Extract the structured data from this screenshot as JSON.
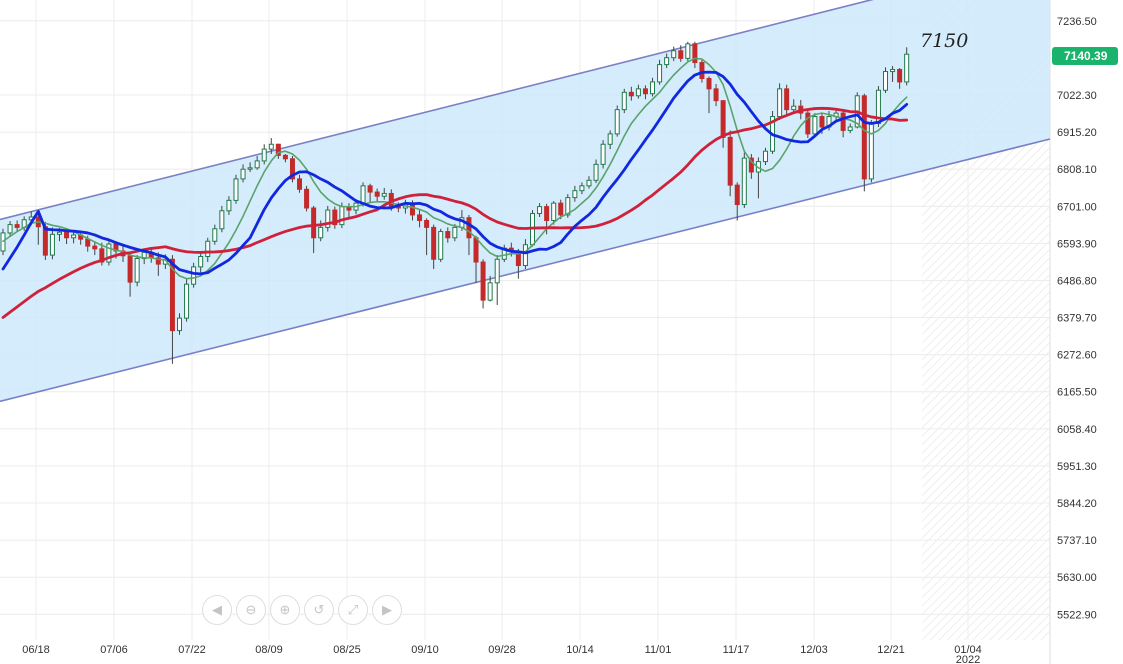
{
  "chart_data": {
    "type": "candlestick",
    "y_axis": {
      "position": "right",
      "range": [
        5470,
        7290
      ],
      "ticks": [
        "7236.50",
        "7022.30",
        "6915.20",
        "6808.10",
        "6701.00",
        "6593.90",
        "6486.80",
        "6379.70",
        "6272.60",
        "6165.50",
        "6058.40",
        "5951.30",
        "5844.20",
        "5737.10",
        "5630.00",
        "5522.90"
      ]
    },
    "x_axis": {
      "ticks": [
        "06/18",
        "07/06",
        "07/22",
        "08/09",
        "08/25",
        "09/10",
        "09/28",
        "10/14",
        "11/01",
        "11/17",
        "12/03",
        "12/21",
        "01/04"
      ],
      "year_label": "2022"
    },
    "current_price": "7140.39",
    "annotation": "7150",
    "grid": true,
    "channel": {
      "upper": [
        [
          0,
          6665
        ],
        [
          108,
          7220
        ]
      ],
      "lower": [
        [
          0,
          6140
        ],
        [
          108,
          6690
        ]
      ]
    },
    "colors": {
      "up": "#1f7a4a",
      "down": "#c42a2a",
      "wick": "#444444",
      "channel_fill": "#cce9fb",
      "channel_line": "#7b7fc4",
      "ma_fast": "#5aa36a",
      "ma_mid": "#1028e0",
      "ma_slow": "#d0213a",
      "price_badge": "#19b36b"
    },
    "candles": [
      [
        6572,
        6624,
        6560,
        6636
      ],
      [
        6624,
        6648,
        6612,
        6658
      ],
      [
        6648,
        6640,
        6628,
        6660
      ],
      [
        6640,
        6662,
        6630,
        6672
      ],
      [
        6662,
        6670,
        6646,
        6686
      ],
      [
        6670,
        6642,
        6590,
        6686
      ],
      [
        6642,
        6560,
        6546,
        6656
      ],
      [
        6560,
        6620,
        6548,
        6640
      ],
      [
        6620,
        6626,
        6600,
        6638
      ],
      [
        6626,
        6610,
        6592,
        6636
      ],
      [
        6610,
        6618,
        6594,
        6630
      ],
      [
        6618,
        6606,
        6590,
        6626
      ],
      [
        6606,
        6586,
        6570,
        6616
      ],
      [
        6586,
        6578,
        6560,
        6600
      ],
      [
        6578,
        6540,
        6530,
        6596
      ],
      [
        6540,
        6592,
        6530,
        6600
      ],
      [
        6592,
        6572,
        6550,
        6600
      ],
      [
        6572,
        6558,
        6540,
        6588
      ],
      [
        6558,
        6482,
        6440,
        6564
      ],
      [
        6482,
        6550,
        6470,
        6560
      ],
      [
        6550,
        6568,
        6534,
        6572
      ],
      [
        6568,
        6552,
        6538,
        6582
      ],
      [
        6552,
        6534,
        6500,
        6568
      ],
      [
        6534,
        6548,
        6520,
        6562
      ],
      [
        6548,
        6342,
        6246,
        6560
      ],
      [
        6342,
        6378,
        6330,
        6392
      ],
      [
        6378,
        6476,
        6368,
        6492
      ],
      [
        6476,
        6526,
        6466,
        6538
      ],
      [
        6526,
        6556,
        6510,
        6568
      ],
      [
        6556,
        6600,
        6540,
        6610
      ],
      [
        6600,
        6636,
        6590,
        6648
      ],
      [
        6636,
        6688,
        6626,
        6702
      ],
      [
        6688,
        6718,
        6676,
        6730
      ],
      [
        6718,
        6780,
        6708,
        6792
      ],
      [
        6780,
        6808,
        6770,
        6822
      ],
      [
        6808,
        6812,
        6800,
        6828
      ],
      [
        6812,
        6832,
        6806,
        6846
      ],
      [
        6832,
        6866,
        6822,
        6880
      ],
      [
        6866,
        6880,
        6852,
        6898
      ],
      [
        6880,
        6848,
        6838,
        6882
      ],
      [
        6848,
        6838,
        6828,
        6852
      ],
      [
        6838,
        6780,
        6770,
        6846
      ],
      [
        6780,
        6750,
        6740,
        6792
      ],
      [
        6750,
        6696,
        6686,
        6760
      ],
      [
        6696,
        6610,
        6566,
        6702
      ],
      [
        6610,
        6640,
        6600,
        6660
      ],
      [
        6640,
        6690,
        6628,
        6702
      ],
      [
        6690,
        6648,
        6636,
        6700
      ],
      [
        6648,
        6700,
        6638,
        6712
      ],
      [
        6700,
        6690,
        6666,
        6710
      ],
      [
        6690,
        6710,
        6678,
        6722
      ],
      [
        6710,
        6760,
        6700,
        6770
      ],
      [
        6760,
        6742,
        6710,
        6766
      ],
      [
        6742,
        6730,
        6716,
        6752
      ],
      [
        6730,
        6738,
        6720,
        6754
      ],
      [
        6738,
        6700,
        6688,
        6750
      ],
      [
        6700,
        6696,
        6684,
        6712
      ],
      [
        6696,
        6710,
        6680,
        6720
      ],
      [
        6710,
        6676,
        6660,
        6718
      ],
      [
        6676,
        6660,
        6640,
        6690
      ],
      [
        6660,
        6640,
        6560,
        6666
      ],
      [
        6640,
        6548,
        6520,
        6648
      ],
      [
        6548,
        6628,
        6540,
        6636
      ],
      [
        6628,
        6610,
        6596,
        6640
      ],
      [
        6610,
        6640,
        6600,
        6650
      ],
      [
        6640,
        6668,
        6630,
        6690
      ],
      [
        6668,
        6610,
        6560,
        6676
      ],
      [
        6610,
        6540,
        6480,
        6616
      ],
      [
        6540,
        6430,
        6406,
        6548
      ],
      [
        6430,
        6480,
        6426,
        6500
      ],
      [
        6480,
        6548,
        6416,
        6560
      ],
      [
        6548,
        6580,
        6540,
        6590
      ],
      [
        6580,
        6570,
        6556,
        6596
      ],
      [
        6570,
        6530,
        6492,
        6578
      ],
      [
        6530,
        6590,
        6520,
        6606
      ],
      [
        6590,
        6680,
        6584,
        6690
      ],
      [
        6680,
        6700,
        6670,
        6710
      ],
      [
        6700,
        6660,
        6620,
        6708
      ],
      [
        6660,
        6710,
        6648,
        6716
      ],
      [
        6710,
        6676,
        6664,
        6720
      ],
      [
        6676,
        6726,
        6668,
        6736
      ],
      [
        6726,
        6746,
        6714,
        6760
      ],
      [
        6746,
        6760,
        6736,
        6770
      ],
      [
        6760,
        6776,
        6752,
        6788
      ],
      [
        6776,
        6822,
        6768,
        6836
      ],
      [
        6822,
        6880,
        6810,
        6892
      ],
      [
        6880,
        6910,
        6866,
        6920
      ],
      [
        6910,
        6980,
        6902,
        6992
      ],
      [
        6980,
        7030,
        6970,
        7040
      ],
      [
        7030,
        7020,
        7006,
        7046
      ],
      [
        7020,
        7040,
        7012,
        7052
      ],
      [
        7040,
        7026,
        7010,
        7050
      ],
      [
        7026,
        7060,
        7018,
        7072
      ],
      [
        7060,
        7110,
        7052,
        7124
      ],
      [
        7110,
        7130,
        7100,
        7142
      ],
      [
        7130,
        7150,
        7120,
        7162
      ],
      [
        7150,
        7128,
        7118,
        7166
      ],
      [
        7128,
        7170,
        7120,
        7176
      ],
      [
        7170,
        7116,
        7100,
        7176
      ],
      [
        7116,
        7070,
        7058,
        7124
      ],
      [
        7070,
        7040,
        6970,
        7076
      ],
      [
        7040,
        7006,
        6990,
        7054
      ],
      [
        7006,
        6900,
        6870,
        6990
      ],
      [
        6900,
        6762,
        6730,
        6920
      ],
      [
        6762,
        6706,
        6660,
        6770
      ],
      [
        6706,
        6840,
        6696,
        6856
      ],
      [
        6840,
        6800,
        6780,
        6852
      ],
      [
        6800,
        6830,
        6724,
        6842
      ],
      [
        6830,
        6860,
        6820,
        6870
      ],
      [
        6860,
        6960,
        6852,
        6976
      ],
      [
        6960,
        7040,
        6950,
        7056
      ],
      [
        7040,
        6980,
        6966,
        7052
      ],
      [
        6980,
        6990,
        6972,
        7010
      ],
      [
        6990,
        6970,
        6952,
        7008
      ],
      [
        6970,
        6910,
        6898,
        6980
      ],
      [
        6910,
        6960,
        6902,
        6970
      ],
      [
        6960,
        6930,
        6910,
        6972
      ],
      [
        6930,
        6960,
        6920,
        6976
      ],
      [
        6960,
        6970,
        6946,
        6980
      ],
      [
        6970,
        6920,
        6900,
        6980
      ],
      [
        6920,
        6930,
        6912,
        6940
      ],
      [
        6930,
        7020,
        6926,
        7030
      ],
      [
        7020,
        6780,
        6744,
        7026
      ],
      [
        6780,
        6940,
        6770,
        6950
      ],
      [
        6940,
        7036,
        6930,
        7048
      ],
      [
        7036,
        7090,
        7028,
        7102
      ],
      [
        7090,
        7096,
        7060,
        7106
      ],
      [
        7096,
        7060,
        7040,
        7100
      ],
      [
        7060,
        7140,
        7050,
        7160
      ]
    ],
    "ma_fast": [
      6600,
      6614,
      6628,
      6640,
      6652,
      6656,
      6652,
      6646,
      6642,
      6636,
      6628,
      6618,
      6608,
      6598,
      6588,
      6580,
      6574,
      6570,
      6560,
      6555,
      6552,
      6552,
      6548,
      6546,
      6520,
      6500,
      6492,
      6494,
      6500,
      6516,
      6536,
      6566,
      6596,
      6632,
      6672,
      6716,
      6760,
      6800,
      6832,
      6856,
      6860,
      6852,
      6834,
      6808,
      6772,
      6742,
      6722,
      6708,
      6700,
      6700,
      6700,
      6706,
      6712,
      6714,
      6714,
      6710,
      6706,
      6702,
      6698,
      6692,
      6684,
      6668,
      6660,
      6650,
      6644,
      6640,
      6628,
      6610,
      6586,
      6566,
      6556,
      6560,
      6564,
      6564,
      6570,
      6588,
      6612,
      6636,
      6654,
      6670,
      6680,
      6692,
      6710,
      6728,
      6754,
      6786,
      6822,
      6862,
      6904,
      6940,
      6966,
      6990,
      7010,
      7030,
      7056,
      7080,
      7100,
      7118,
      7128,
      7126,
      7110,
      7088,
      7052,
      6990,
      6920,
      6860,
      6830,
      6812,
      6802,
      6810,
      6834,
      6866,
      6904,
      6934,
      6956,
      6966,
      6970,
      6966,
      6960,
      6954,
      6950,
      6940,
      6920,
      6910,
      6920,
      6940,
      6972,
      6996,
      7016
    ]
  }
}
